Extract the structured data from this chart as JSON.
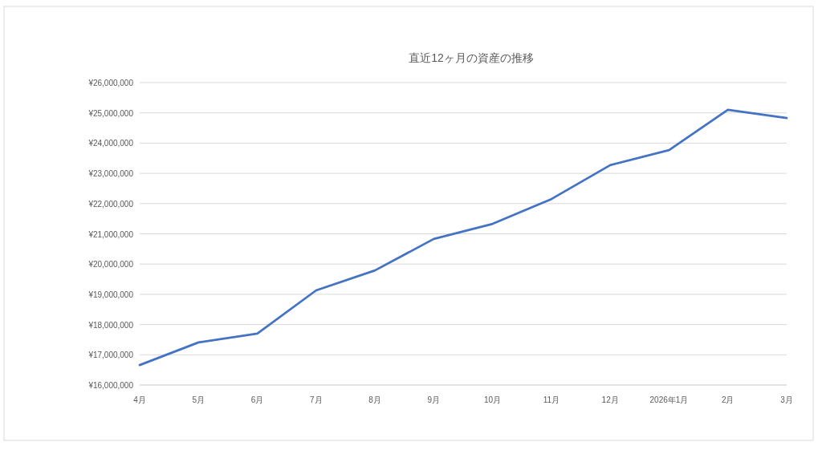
{
  "chart_data": {
    "type": "line",
    "title": "直近12ヶ月の資産の推移",
    "categories": [
      "4月",
      "5月",
      "6月",
      "7月",
      "8月",
      "9月",
      "10月",
      "11月",
      "12月",
      "2026年1月",
      "2月",
      "3月"
    ],
    "series": [
      {
        "color": "#4472c4",
        "values": [
          16660000,
          17410000,
          17700000,
          19130000,
          19790000,
          20830000,
          21330000,
          22150000,
          23270000,
          23770000,
          25100000,
          24830000
        ]
      }
    ],
    "ylim": [
      16000000,
      26000000
    ],
    "yticks": [
      {
        "value": 16000000,
        "label": "¥16,000,000"
      },
      {
        "value": 17000000,
        "label": "¥17,000,000"
      },
      {
        "value": 18000000,
        "label": "¥18,000,000"
      },
      {
        "value": 19000000,
        "label": "¥19,000,000"
      },
      {
        "value": 20000000,
        "label": "¥20,000,000"
      },
      {
        "value": 21000000,
        "label": "¥21,000,000"
      },
      {
        "value": 22000000,
        "label": "¥22,000,000"
      },
      {
        "value": 23000000,
        "label": "¥23,000,000"
      },
      {
        "value": 24000000,
        "label": "¥24,000,000"
      },
      {
        "value": 25000000,
        "label": "¥25,000,000"
      },
      {
        "value": 26000000,
        "label": "¥26,000,000"
      }
    ],
    "grid": "y",
    "marker": "none",
    "line_style": "solid"
  }
}
